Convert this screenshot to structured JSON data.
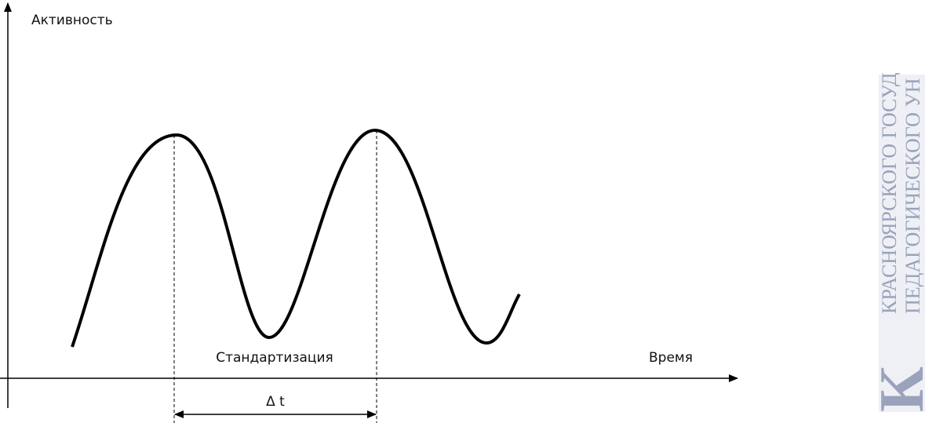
{
  "axes": {
    "y_label": "Активность",
    "x_label": "Время"
  },
  "labels": {
    "phase": "Стандартизация",
    "interval": "Δ t"
  },
  "watermark": {
    "letter": "К",
    "line1": "КРАСНОЯРСКОГО ГОСУД",
    "line2": "ПЕДАГОГИЧЕСКОГО УН"
  }
}
